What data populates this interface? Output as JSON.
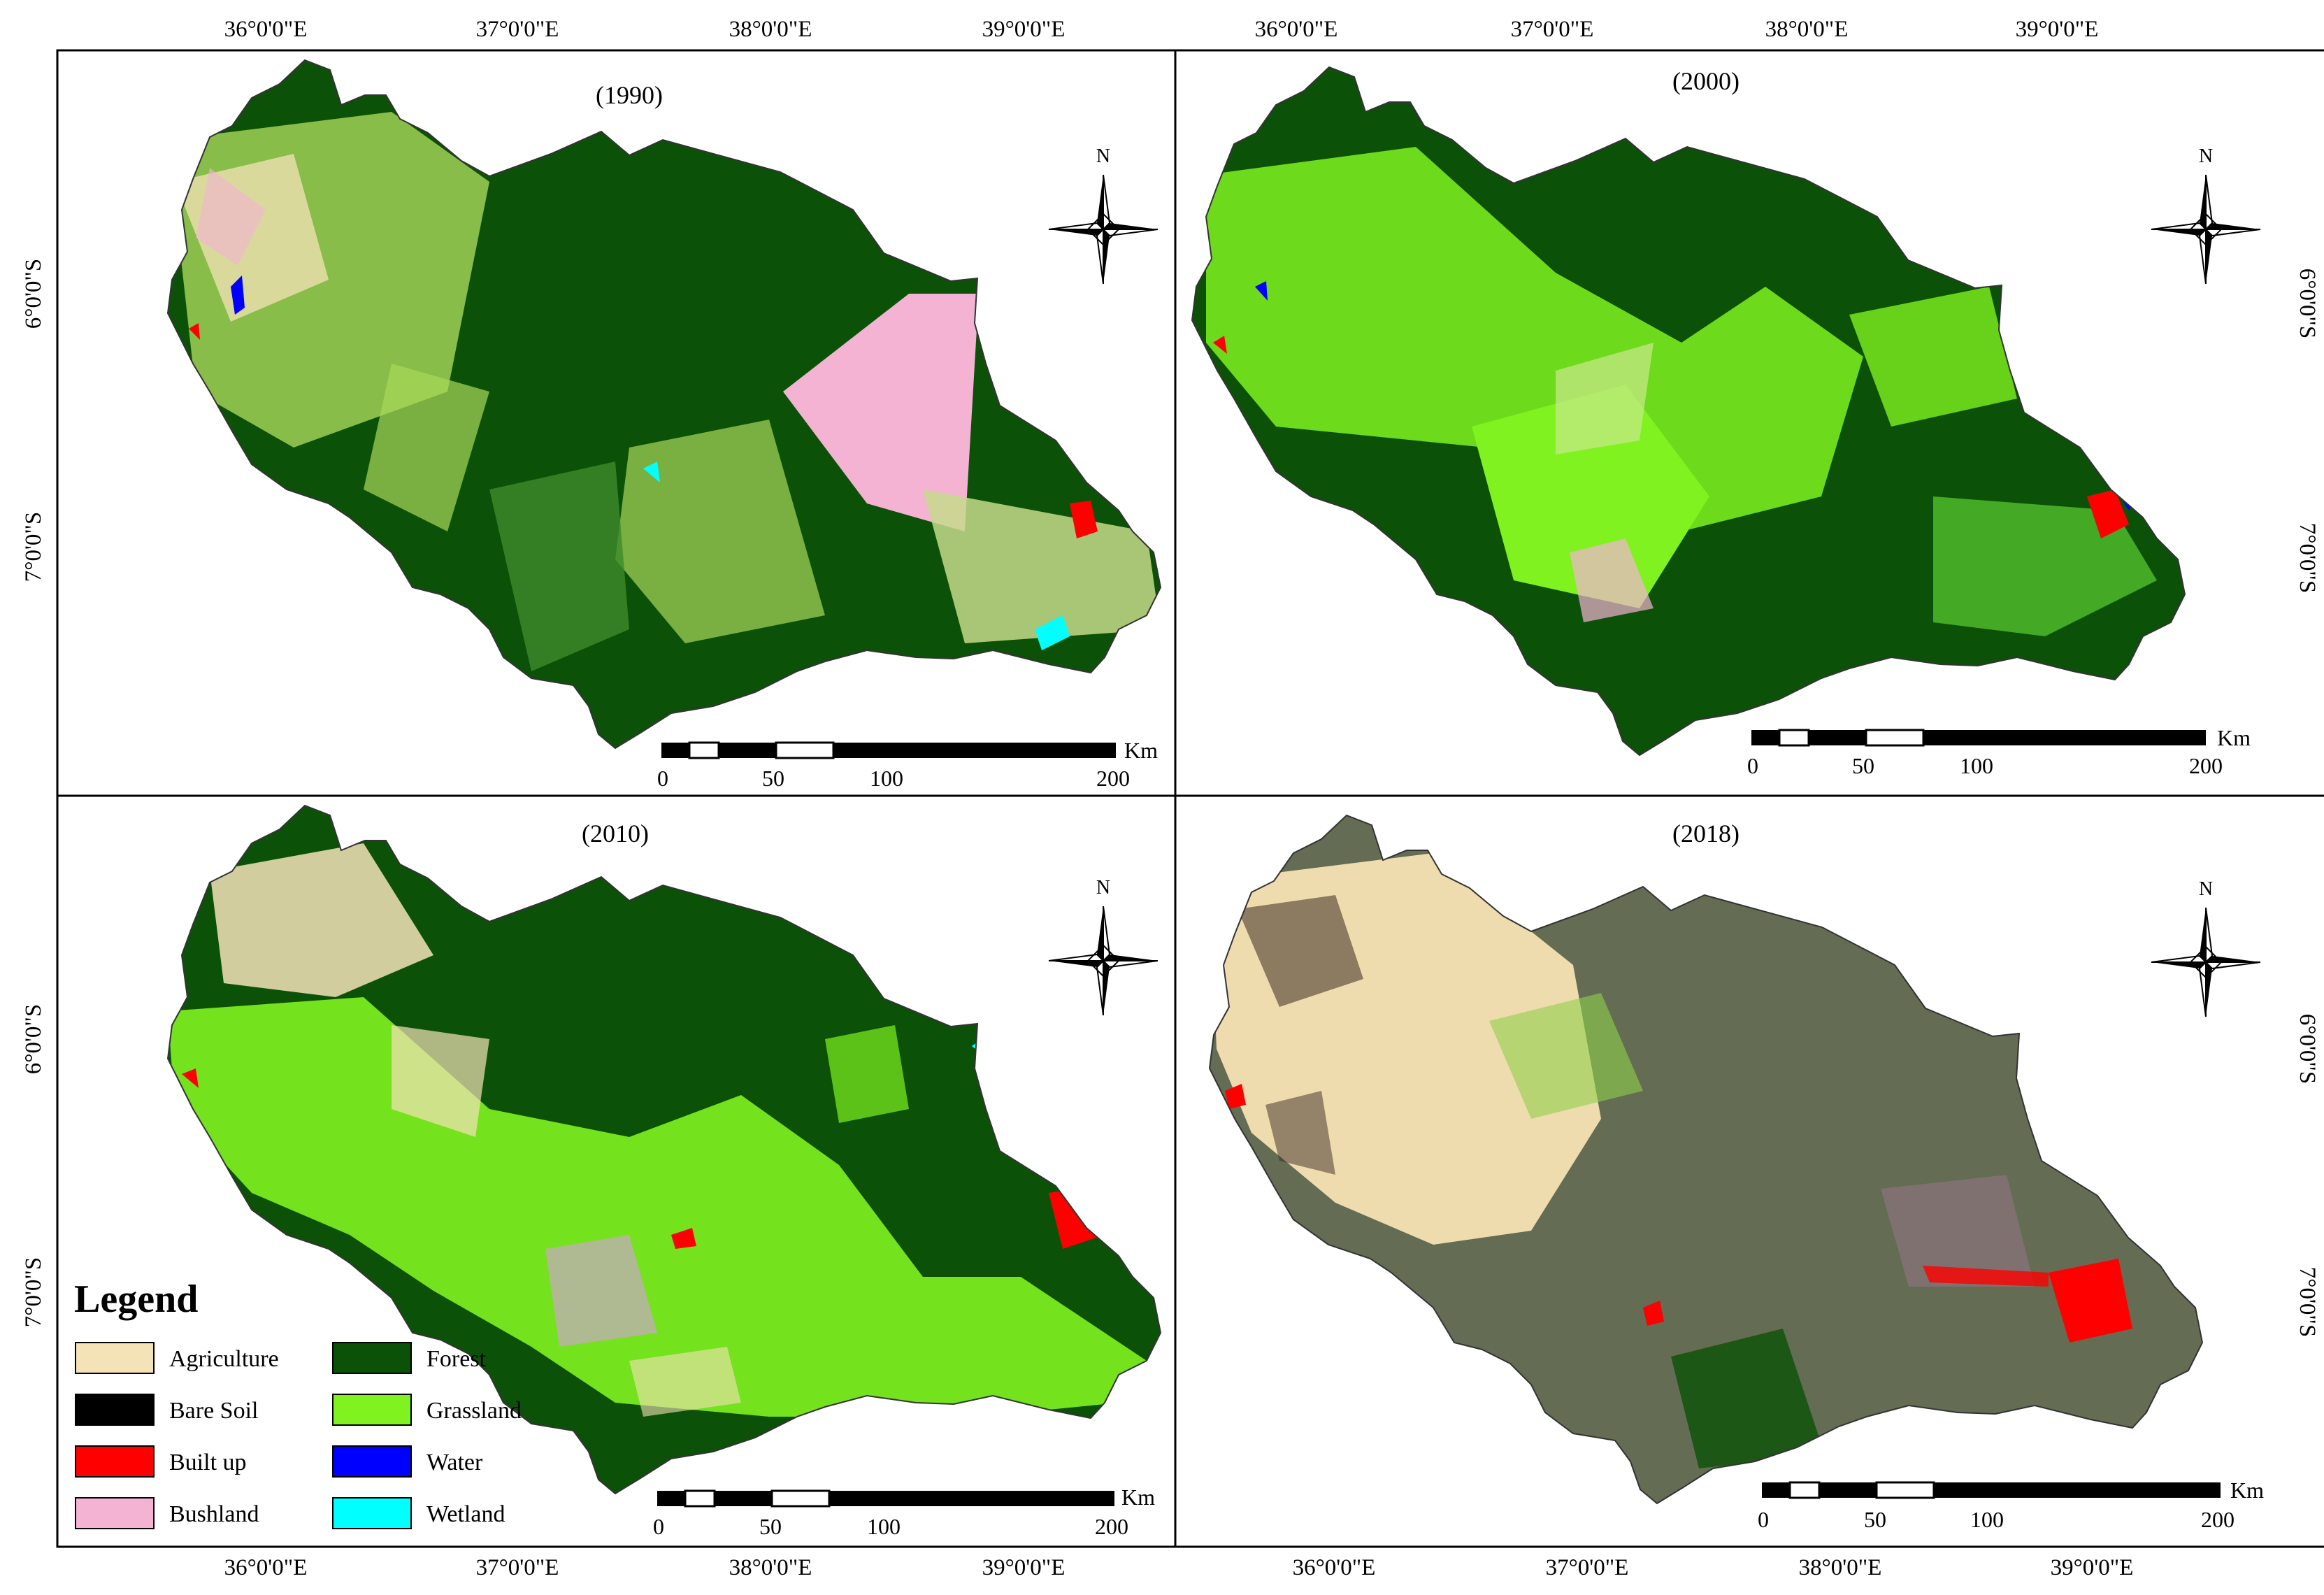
{
  "figure": {
    "top_longitudes": [
      "36°0'0\"E",
      "37°0'0\"E",
      "38°0'0\"E",
      "39°0'0\"E",
      "36°0'0\"E",
      "37°0'0\"E",
      "38°0'0\"E",
      "39°0'0\"E"
    ],
    "bottom_longitudes": [
      "36°0'0\"E",
      "37°0'0\"E",
      "38°0'0\"E",
      "39°0'0\"E",
      "36°0'0\"E",
      "37°0'0\"E",
      "38°0'0\"E",
      "39°0'0\"E"
    ],
    "left_latitudes": [
      "6°0'0\"S",
      "7°0'0\"S",
      "6°0'0\"S",
      "7°0'0\"S"
    ],
    "right_latitudes": [
      "6°0'0\"S",
      "7°0'0\"S",
      "6°0'0\"S",
      "7°0'0\"S"
    ]
  },
  "panels": [
    {
      "title": "(1990)",
      "north_label": "N",
      "scale_unit": "Km",
      "scale_ticks": [
        "0",
        "50",
        "100",
        "200"
      ]
    },
    {
      "title": "(2000)",
      "north_label": "N",
      "scale_unit": "Km",
      "scale_ticks": [
        "0",
        "50",
        "100",
        "200"
      ]
    },
    {
      "title": "(2010)",
      "north_label": "N",
      "scale_unit": "Km",
      "scale_ticks": [
        "0",
        "50",
        "100",
        "200"
      ]
    },
    {
      "title": "(2018)",
      "north_label": "N",
      "scale_unit": "Km",
      "scale_ticks": [
        "0",
        "50",
        "100",
        "200"
      ]
    }
  ],
  "legend": {
    "title": "Legend",
    "items": [
      {
        "label": "Agriculture",
        "color": "#f5e3b8"
      },
      {
        "label": "Forest",
        "color": "#0b5208"
      },
      {
        "label": "Bare Soil",
        "color": "#000000"
      },
      {
        "label": "Grassland",
        "color": "#7ff21f"
      },
      {
        "label": "Built up",
        "color": "#ff0000"
      },
      {
        "label": "Water",
        "color": "#0000ff"
      },
      {
        "label": "Bushland",
        "color": "#f4b3d3"
      },
      {
        "label": "Wetland",
        "color": "#00ffff"
      }
    ]
  },
  "colors": {
    "frame": "#000000",
    "background": "#ffffff",
    "agriculture": "#f5e3b8",
    "forest": "#0b5208",
    "bare_soil": "#000000",
    "grassland": "#7ff21f",
    "built_up": "#ff0000",
    "bushland": "#f4b3d3",
    "water": "#0000ff",
    "wetland": "#00ffff"
  }
}
